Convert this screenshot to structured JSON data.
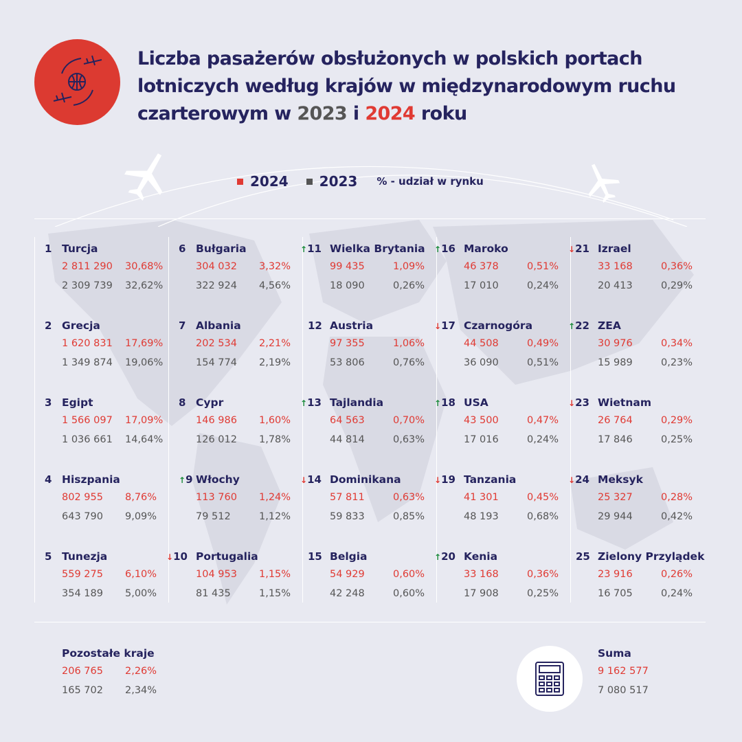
{
  "title": {
    "part1": "Liczba pasażerów obsłużonych w polskich portach lotniczych według krajów w międzynarodowym ruchu czarterowym w ",
    "y2023": "2023",
    "mid": " i ",
    "y2024": "2024",
    "end": " roku"
  },
  "legend": {
    "l2024": "2024",
    "l2023": "2023",
    "share": "% - udział w rynku"
  },
  "colors": {
    "background": "#e8e9f1",
    "navy": "#25235e",
    "red_2024": "#e03a33",
    "gray_2023": "#555555",
    "up": "#1a8a3a",
    "down": "#e03a33"
  },
  "icons": {
    "logo": "globe-with-planes-icon",
    "background": "world-map",
    "calculator": "calculator-icon"
  },
  "chart_data": {
    "type": "table",
    "columns": [
      "rank",
      "trend",
      "country",
      "2024",
      "2024 %",
      "2023",
      "2023 %"
    ],
    "rows": [
      {
        "rank": "1",
        "trend": "",
        "country": "Turcja",
        "v2024": "2 811 290",
        "p2024": "30,68%",
        "v2023": "2 309 739",
        "p2023": "32,62%"
      },
      {
        "rank": "2",
        "trend": "",
        "country": "Grecja",
        "v2024": "1 620 831",
        "p2024": "17,69%",
        "v2023": "1 349 874",
        "p2023": "19,06%"
      },
      {
        "rank": "3",
        "trend": "",
        "country": "Egipt",
        "v2024": "1 566 097",
        "p2024": "17,09%",
        "v2023": "1 036 661",
        "p2023": "14,64%"
      },
      {
        "rank": "4",
        "trend": "",
        "country": "Hiszpania",
        "v2024": "802 955",
        "p2024": "8,76%",
        "v2023": "643 790",
        "p2023": "9,09%"
      },
      {
        "rank": "5",
        "trend": "",
        "country": "Tunezja",
        "v2024": "559 275",
        "p2024": "6,10%",
        "v2023": "354 189",
        "p2023": "5,00%"
      },
      {
        "rank": "6",
        "trend": "",
        "country": "Bułgaria",
        "v2024": "304 032",
        "p2024": "3,32%",
        "v2023": "322 924",
        "p2023": "4,56%"
      },
      {
        "rank": "7",
        "trend": "",
        "country": "Albania",
        "v2024": "202 534",
        "p2024": "2,21%",
        "v2023": "154 774",
        "p2023": "2,19%"
      },
      {
        "rank": "8",
        "trend": "",
        "country": "Cypr",
        "v2024": "146 986",
        "p2024": "1,60%",
        "v2023": "126 012",
        "p2023": "1,78%"
      },
      {
        "rank": "9",
        "trend": "up",
        "country": "Włochy",
        "v2024": "113 760",
        "p2024": "1,24%",
        "v2023": "79 512",
        "p2023": "1,12%"
      },
      {
        "rank": "10",
        "trend": "down",
        "country": "Portugalia",
        "v2024": "104 953",
        "p2024": "1,15%",
        "v2023": "81 435",
        "p2023": "1,15%"
      },
      {
        "rank": "11",
        "trend": "up",
        "country": "Wielka Brytania",
        "v2024": "99 435",
        "p2024": "1,09%",
        "v2023": "18 090",
        "p2023": "0,26%"
      },
      {
        "rank": "12",
        "trend": "",
        "country": "Austria",
        "v2024": "97 355",
        "p2024": "1,06%",
        "v2023": "53 806",
        "p2023": "0,76%"
      },
      {
        "rank": "13",
        "trend": "up",
        "country": "Tajlandia",
        "v2024": "64 563",
        "p2024": "0,70%",
        "v2023": "44 814",
        "p2023": "0,63%"
      },
      {
        "rank": "14",
        "trend": "down",
        "country": "Dominikana",
        "v2024": "57 811",
        "p2024": "0,63%",
        "v2023": "59 833",
        "p2023": "0,85%"
      },
      {
        "rank": "15",
        "trend": "",
        "country": "Belgia",
        "v2024": "54 929",
        "p2024": "0,60%",
        "v2023": "42 248",
        "p2023": "0,60%"
      },
      {
        "rank": "16",
        "trend": "up",
        "country": "Maroko",
        "v2024": "46 378",
        "p2024": "0,51%",
        "v2023": "17 010",
        "p2023": "0,24%"
      },
      {
        "rank": "17",
        "trend": "down",
        "country": "Czarnogóra",
        "v2024": "44 508",
        "p2024": "0,49%",
        "v2023": "36 090",
        "p2023": "0,51%"
      },
      {
        "rank": "18",
        "trend": "up",
        "country": "USA",
        "v2024": "43 500",
        "p2024": "0,47%",
        "v2023": "17 016",
        "p2023": "0,24%"
      },
      {
        "rank": "19",
        "trend": "down",
        "country": "Tanzania",
        "v2024": "41 301",
        "p2024": "0,45%",
        "v2023": "48 193",
        "p2023": "0,68%"
      },
      {
        "rank": "20",
        "trend": "up",
        "country": "Kenia",
        "v2024": "33 168",
        "p2024": "0,36%",
        "v2023": "17 908",
        "p2023": "0,25%"
      },
      {
        "rank": "21",
        "trend": "down",
        "country": "Izrael",
        "v2024": "33 168",
        "p2024": "0,36%",
        "v2023": "20 413",
        "p2023": "0,29%"
      },
      {
        "rank": "22",
        "trend": "up",
        "country": "ZEA",
        "v2024": "30 976",
        "p2024": "0,34%",
        "v2023": "15 989",
        "p2023": "0,23%"
      },
      {
        "rank": "23",
        "trend": "down",
        "country": "Wietnam",
        "v2024": "26 764",
        "p2024": "0,29%",
        "v2023": "17 846",
        "p2023": "0,25%"
      },
      {
        "rank": "24",
        "trend": "down",
        "country": "Meksyk",
        "v2024": "25 327",
        "p2024": "0,28%",
        "v2023": "29 944",
        "p2023": "0,42%"
      },
      {
        "rank": "25",
        "trend": "",
        "country": "Zielony Przylądek",
        "v2024": "23 916",
        "p2024": "0,26%",
        "v2023": "16 705",
        "p2023": "0,24%"
      }
    ],
    "other": {
      "label": "Pozostałe kraje",
      "v2024": "206 765",
      "p2024": "2,26%",
      "v2023": "165 702",
      "p2023": "2,34%"
    },
    "total": {
      "label": "Suma",
      "v2024": "9 162 577",
      "v2023": "7 080 517"
    }
  }
}
